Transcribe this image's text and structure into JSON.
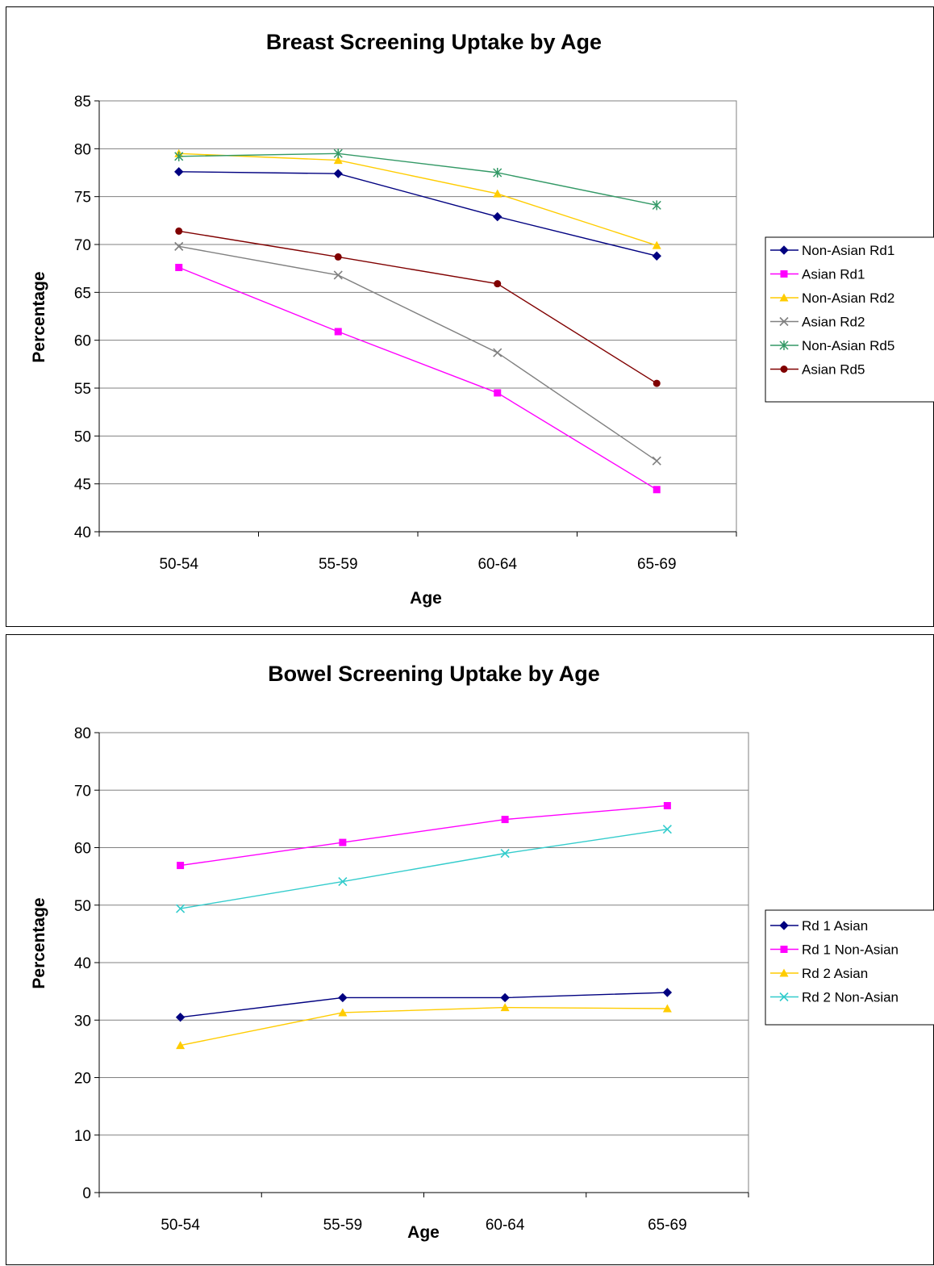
{
  "chart_data": [
    {
      "type": "line",
      "title": "Breast Screening Uptake by Age",
      "xlabel": "Age",
      "ylabel": "Percentage",
      "categories": [
        "50-54",
        "55-59",
        "60-64",
        "65-69"
      ],
      "ylim": [
        40,
        85
      ],
      "yticks": [
        40,
        45,
        50,
        55,
        60,
        65,
        70,
        75,
        80,
        85
      ],
      "grid": "horizontal",
      "legend": "right",
      "series": [
        {
          "name": "Non-Asian Rd1",
          "values": [
            77.6,
            77.4,
            72.9,
            68.8
          ],
          "color": "#000080",
          "marker": "diamond"
        },
        {
          "name": "Asian Rd1",
          "values": [
            67.6,
            60.9,
            54.5,
            44.4
          ],
          "color": "#ff00ff",
          "marker": "square"
        },
        {
          "name": "Non-Asian Rd2",
          "values": [
            79.5,
            78.8,
            75.3,
            69.9
          ],
          "color": "#ffcc00",
          "marker": "triangle"
        },
        {
          "name": "Asian Rd2",
          "values": [
            69.8,
            66.8,
            58.7,
            47.4
          ],
          "color": "#808080",
          "marker": "x"
        },
        {
          "name": "Non-Asian Rd5",
          "values": [
            79.2,
            79.5,
            77.5,
            74.1
          ],
          "color": "#339966",
          "marker": "star"
        },
        {
          "name": "Asian Rd5",
          "values": [
            71.4,
            68.7,
            65.9,
            55.5
          ],
          "color": "#800000",
          "marker": "circle"
        }
      ]
    },
    {
      "type": "line",
      "title": "Bowel Screening Uptake by Age",
      "xlabel": "Age",
      "ylabel": "Percentage",
      "categories": [
        "50-54",
        "55-59",
        "60-64",
        "65-69"
      ],
      "ylim": [
        0,
        80
      ],
      "yticks": [
        0,
        10,
        20,
        30,
        40,
        50,
        60,
        70,
        80
      ],
      "grid": "horizontal",
      "legend": "right",
      "series": [
        {
          "name": "Rd 1 Asian",
          "values": [
            30.5,
            33.9,
            33.9,
            34.8
          ],
          "color": "#000080",
          "marker": "diamond"
        },
        {
          "name": "Rd 1 Non-Asian",
          "values": [
            56.9,
            60.9,
            64.9,
            67.3
          ],
          "color": "#ff00ff",
          "marker": "square"
        },
        {
          "name": "Rd 2 Asian",
          "values": [
            25.6,
            31.3,
            32.2,
            32.0
          ],
          "color": "#ffcc00",
          "marker": "triangle"
        },
        {
          "name": "Rd 2 Non-Asian",
          "values": [
            49.4,
            54.1,
            59.0,
            63.2
          ],
          "color": "#33cccc",
          "marker": "x"
        }
      ]
    }
  ]
}
